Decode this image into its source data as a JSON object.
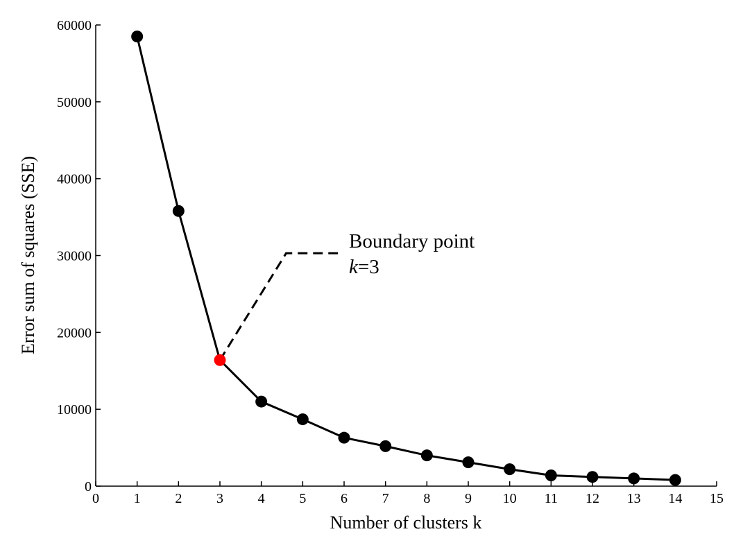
{
  "chart_data": {
    "type": "line",
    "title": "",
    "xlabel": "Number of clusters k",
    "ylabel": "Error sum of squares (SSE)",
    "xlim": [
      0,
      15
    ],
    "ylim": [
      0,
      60000
    ],
    "x_ticks": [
      "0",
      "1",
      "2",
      "3",
      "4",
      "5",
      "6",
      "7",
      "8",
      "9",
      "10",
      "11",
      "12",
      "13",
      "14",
      "15"
    ],
    "y_ticks": [
      "0",
      "10000",
      "20000",
      "30000",
      "40000",
      "50000",
      "60000"
    ],
    "grid": false,
    "legend": "none",
    "series": [
      {
        "x": [
          1,
          2,
          3,
          4,
          5,
          6,
          7,
          8,
          9,
          10,
          11,
          12,
          13,
          14
        ],
        "y": [
          58500,
          35800,
          16400,
          11000,
          8700,
          6300,
          5200,
          4000,
          3100,
          2200,
          1400,
          1200,
          1000,
          800
        ],
        "line_color": "#000000",
        "marker_color": "#000000"
      }
    ],
    "highlight": {
      "x": 3,
      "y": 16400,
      "color": "#ff0000"
    },
    "annotation": {
      "line1": "Boundary point",
      "k_symbol": "k",
      "equals_value": "=3",
      "leader_elbow": {
        "x": 4.6,
        "y": 30300
      },
      "leader_end": {
        "x": 5.85,
        "y": 30300
      }
    }
  }
}
